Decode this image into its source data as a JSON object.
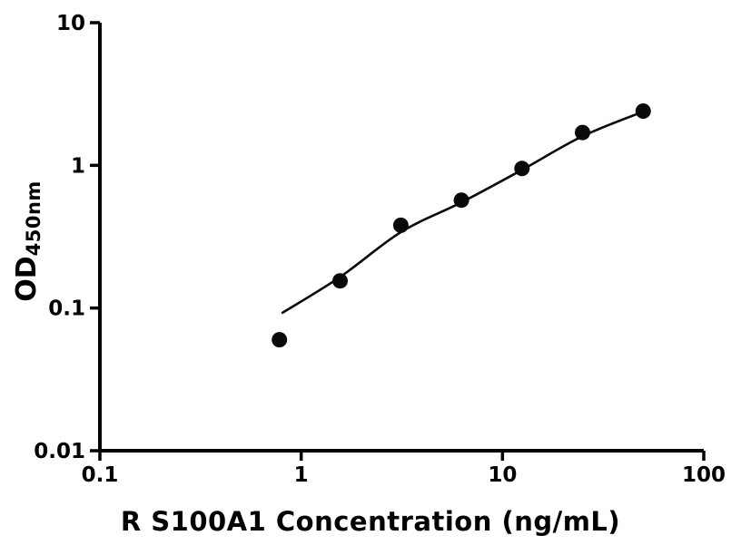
{
  "chart_data": {
    "type": "scatter",
    "title": "",
    "xlabel": "R S100A1 Concentration (ng/mL)",
    "ylabel_main": "OD",
    "ylabel_sub": "450nm",
    "x_scale": "log",
    "y_scale": "log",
    "xlim": [
      0.1,
      100
    ],
    "ylim": [
      0.01,
      10
    ],
    "grid": false,
    "legend": null,
    "x_ticks": [
      {
        "value": 0.1,
        "label": "0.1"
      },
      {
        "value": 1,
        "label": "1"
      },
      {
        "value": 10,
        "label": "10"
      },
      {
        "value": 100,
        "label": "100"
      }
    ],
    "y_ticks": [
      {
        "value": 0.01,
        "label": "0.01"
      },
      {
        "value": 0.1,
        "label": "0.1"
      },
      {
        "value": 1,
        "label": "1"
      },
      {
        "value": 10,
        "label": "10"
      }
    ],
    "points": [
      {
        "x": 0.78,
        "y": 0.06
      },
      {
        "x": 1.56,
        "y": 0.155
      },
      {
        "x": 3.125,
        "y": 0.38
      },
      {
        "x": 6.25,
        "y": 0.57
      },
      {
        "x": 12.5,
        "y": 0.95
      },
      {
        "x": 25,
        "y": 1.7
      },
      {
        "x": 50,
        "y": 2.4
      }
    ],
    "fit_curve": [
      {
        "x": 0.8,
        "y": 0.092
      },
      {
        "x": 1.56,
        "y": 0.165
      },
      {
        "x": 3.125,
        "y": 0.34
      },
      {
        "x": 6.25,
        "y": 0.55
      },
      {
        "x": 12.5,
        "y": 0.93
      },
      {
        "x": 25,
        "y": 1.6
      },
      {
        "x": 50,
        "y": 2.38
      }
    ],
    "colors": {
      "point": "#0a0a0a",
      "line": "#0a0a0a",
      "axis": "#000000",
      "background": "#ffffff"
    }
  }
}
